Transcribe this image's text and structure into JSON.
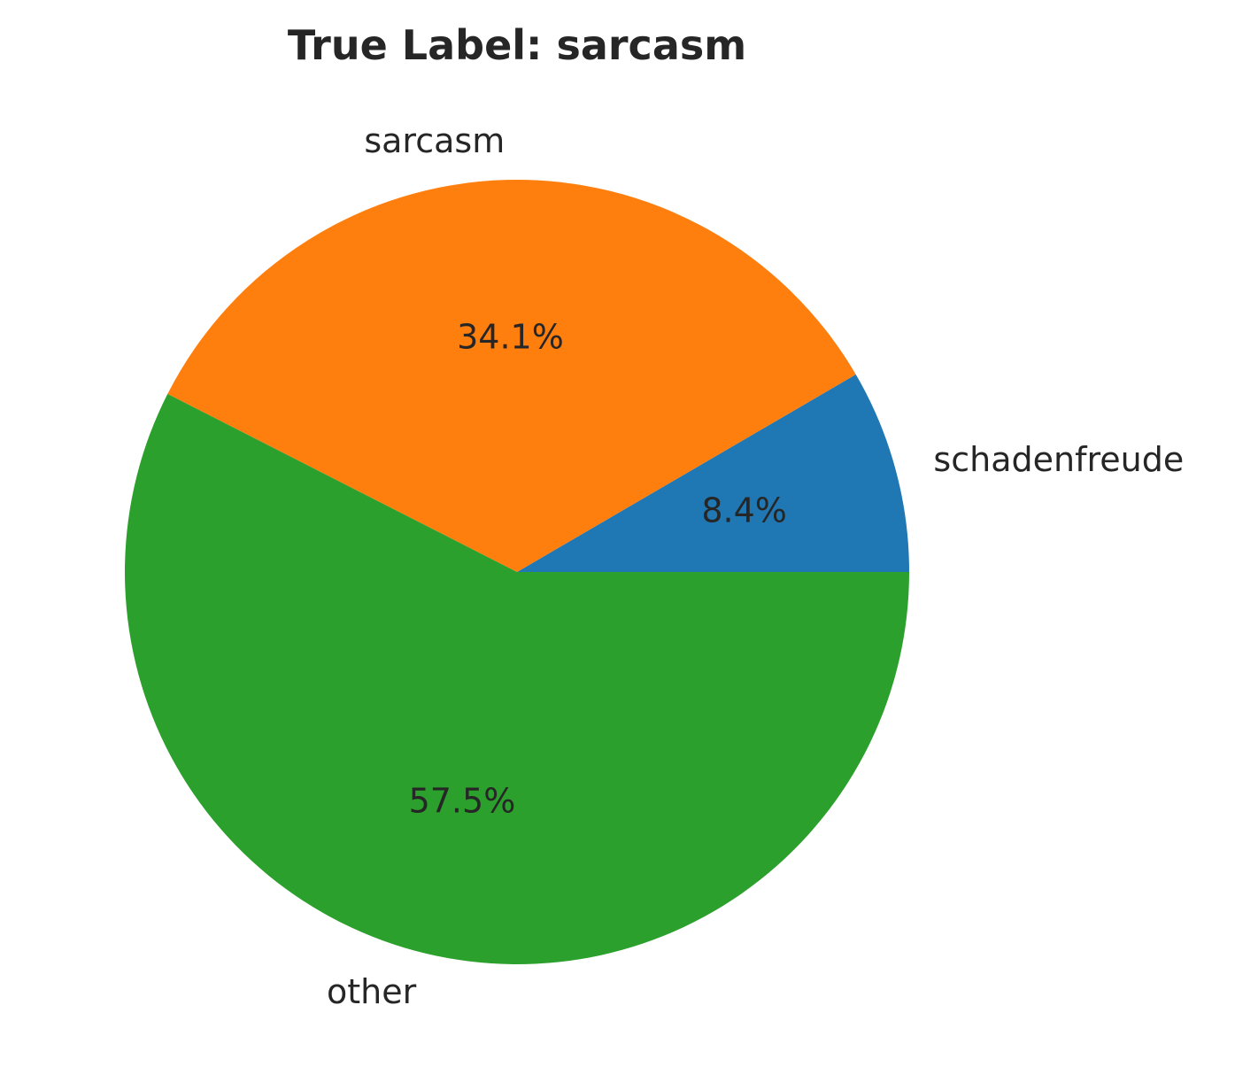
{
  "chart_data": {
    "type": "pie",
    "title": "True Label: sarcasm",
    "start_angle_deg": 0,
    "direction": "counterclockwise",
    "slices": [
      {
        "label": "schadenfreude",
        "value": 8.4,
        "pct_label": "8.4%",
        "color": "#1f77b4"
      },
      {
        "label": "sarcasm",
        "value": 34.1,
        "pct_label": "34.1%",
        "color": "#ff7f0e"
      },
      {
        "label": "other",
        "value": 57.5,
        "pct_label": "57.5%",
        "color": "#2ca02c"
      }
    ]
  }
}
